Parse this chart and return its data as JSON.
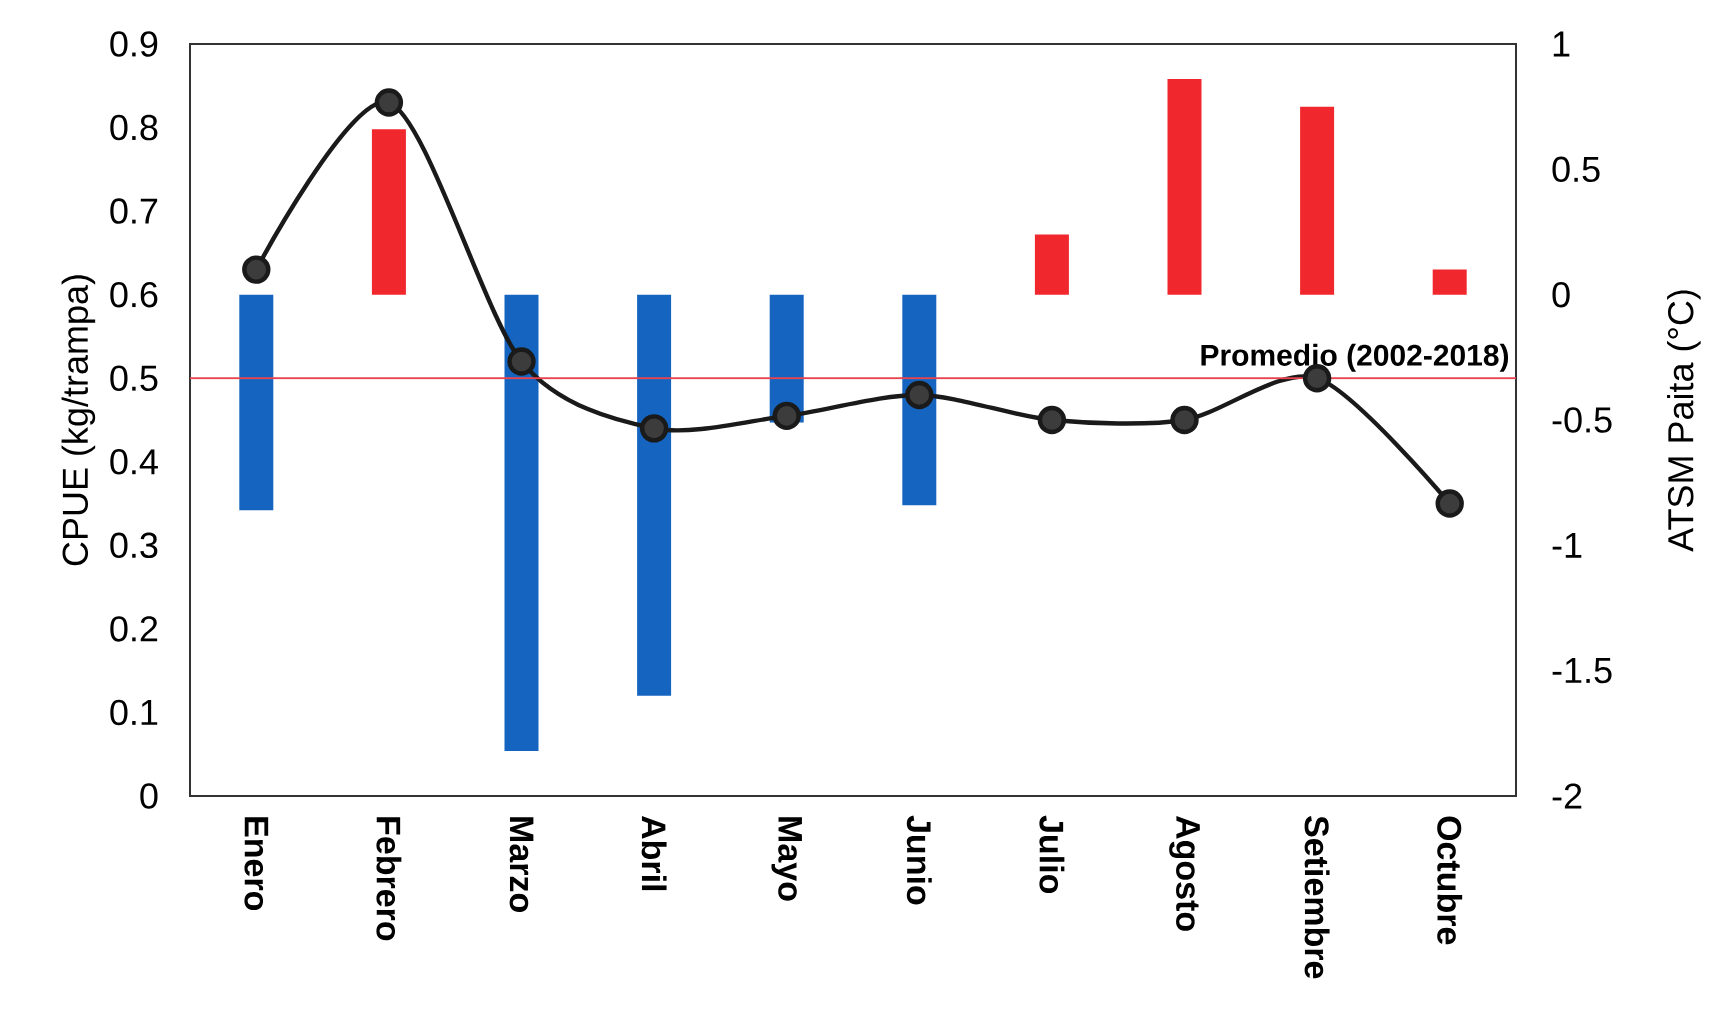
{
  "chart_data": {
    "type": "bar",
    "categories": [
      "Enero",
      "Febrero",
      "Marzo",
      "Abril",
      "Mayo",
      "Junio",
      "Julio",
      "Agosto",
      "Setiembre",
      "Octubre"
    ],
    "ylabel": "CPUE (kg/trampa)",
    "y2label": "ATSM Paita (°C)",
    "ylim": [
      0,
      0.9
    ],
    "yticks": [
      0,
      0.1,
      0.2,
      0.3,
      0.4,
      0.5,
      0.6,
      0.7,
      0.8,
      0.9
    ],
    "y2lim": [
      -2,
      1
    ],
    "y2ticks": [
      -2,
      -1.5,
      -1,
      -0.5,
      0,
      0.5,
      1
    ],
    "series": [
      {
        "axis": "y2",
        "colors": [
          "#1565c0",
          "#f0282d",
          "#1565c0",
          "#1565c0",
          "#1565c0",
          "#1565c0",
          "#f0282d",
          "#f0282d",
          "#f0282d",
          "#f0282d"
        ],
        "values": [
          -0.86,
          0.66,
          -1.82,
          -1.6,
          -0.51,
          -0.84,
          0.24,
          0.86,
          0.75,
          0.1
        ]
      },
      {
        "type": "line",
        "axis": "y",
        "color": "#1a1a1a",
        "marker": "circle",
        "values": [
          0.63,
          0.83,
          0.52,
          0.44,
          0.455,
          0.48,
          0.45,
          0.45,
          0.5,
          0.35
        ]
      }
    ],
    "ref_lines": [
      {
        "axis": "y",
        "value": 0.5,
        "label": "Promedio (2002-2018)",
        "color": "#e8434f"
      }
    ],
    "legend": false,
    "grid": false
  }
}
